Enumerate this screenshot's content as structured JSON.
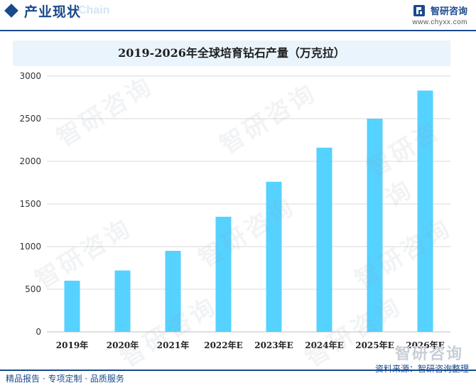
{
  "header": {
    "title": "产业现状",
    "title_shadow": "Chain",
    "brand_name": "智研咨询",
    "brand_url": "www.chyxx.com"
  },
  "footer": {
    "left_text": "精品报告 · 专项定制 · 品质服务",
    "source_text": "资料来源：智研咨询整理",
    "logo_text": "智研咨询"
  },
  "watermark_text": "智研咨询",
  "colors": {
    "brand": "#1a4a8c",
    "bar": "#55d2ff",
    "title_band": "#e9f4fc"
  },
  "chart_data": {
    "type": "bar",
    "title": "2019-2026年全球培育钻石产量（万克拉）",
    "categories": [
      "2019年",
      "2020年",
      "2021年",
      "2022年E",
      "2023年E",
      "2024年E",
      "2025年E",
      "2026年E"
    ],
    "values": [
      600,
      720,
      950,
      1350,
      1760,
      2160,
      2500,
      2830
    ],
    "ylim": [
      0,
      3000
    ],
    "yticks": [
      0,
      500,
      1000,
      1500,
      2000,
      2500,
      3000
    ],
    "grid": true,
    "legend": "none"
  }
}
